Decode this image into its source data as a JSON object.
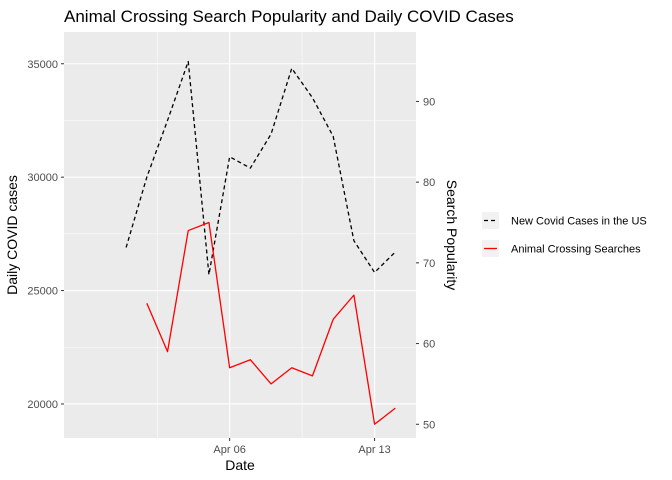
{
  "chart_data": {
    "type": "line",
    "title": "Animal Crossing Search Popularity and Daily COVID Cases",
    "xlabel": "Date",
    "ylabel_left": "Daily COVID cases",
    "ylabel_right": "Search Popularity",
    "x_ticks": [
      "Apr 06",
      "Apr 13"
    ],
    "y_left_ticks": [
      20000,
      25000,
      30000,
      35000
    ],
    "y_right_ticks": [
      50,
      60,
      70,
      80,
      90
    ],
    "y_left_lim": [
      18500,
      36400
    ],
    "y_right_lim": [
      48.3,
      98.6
    ],
    "x_dates": [
      "2020-03-29",
      "2020-03-30",
      "2020-03-31",
      "2020-04-01",
      "2020-04-02",
      "2020-04-03",
      "2020-04-04",
      "2020-04-05",
      "2020-04-06",
      "2020-04-07",
      "2020-04-08",
      "2020-04-09",
      "2020-04-10",
      "2020-04-11",
      "2020-04-12",
      "2020-04-13",
      "2020-04-14",
      "2020-04-15"
    ],
    "series": [
      {
        "name": "New Covid Cases in the US",
        "axis": "left",
        "color": "#000000",
        "dash": "dashed",
        "x": [
          "2020-04-01",
          "2020-04-02",
          "2020-04-03",
          "2020-04-04",
          "2020-04-05",
          "2020-04-06",
          "2020-04-07",
          "2020-04-08",
          "2020-04-09",
          "2020-04-10",
          "2020-04-11",
          "2020-04-12",
          "2020-04-13",
          "2020-04-14"
        ],
        "values": [
          26900,
          30000,
          32500,
          35100,
          25700,
          30900,
          30400,
          31900,
          34800,
          33500,
          31800,
          27200,
          25800,
          26700
        ]
      },
      {
        "name": "Animal Crossing Searches",
        "axis": "right",
        "color": "#ff0000",
        "dash": "solid",
        "x": [
          "2020-04-02",
          "2020-04-03",
          "2020-04-04",
          "2020-04-05",
          "2020-04-06",
          "2020-04-07",
          "2020-04-08",
          "2020-04-09",
          "2020-04-10",
          "2020-04-11",
          "2020-04-12",
          "2020-04-13",
          "2020-04-14"
        ],
        "values": [
          65,
          59,
          74,
          75,
          57,
          58,
          55,
          57,
          56,
          63,
          66,
          50,
          52
        ]
      }
    ],
    "legend": {
      "position": "right",
      "items": [
        "New Covid Cases in the US",
        "Animal Crossing Searches"
      ]
    },
    "grid": true,
    "panel_background": "#ebebeb",
    "grid_color": "#ffffff"
  }
}
